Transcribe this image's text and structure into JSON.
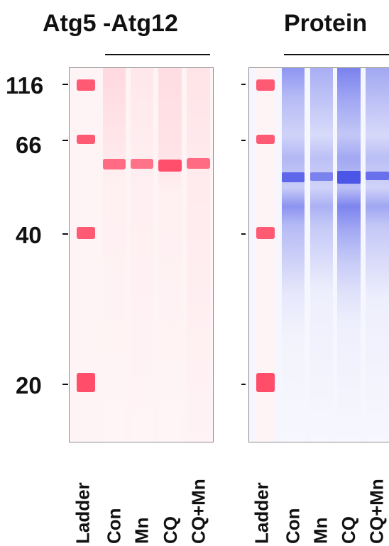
{
  "panels": [
    {
      "title": "Atg5 -Atg12",
      "color": "#ff2d55",
      "lanes": [
        "Ladder",
        "Con",
        "Mn",
        "CQ",
        "CQ+Mn"
      ]
    },
    {
      "title": "Protein",
      "color": "#3344ee",
      "lanes": [
        "Ladder",
        "Con",
        "Mn",
        "CQ",
        "CQ+Mn"
      ]
    }
  ],
  "markers": [
    "116",
    "66",
    "40",
    "20"
  ]
}
